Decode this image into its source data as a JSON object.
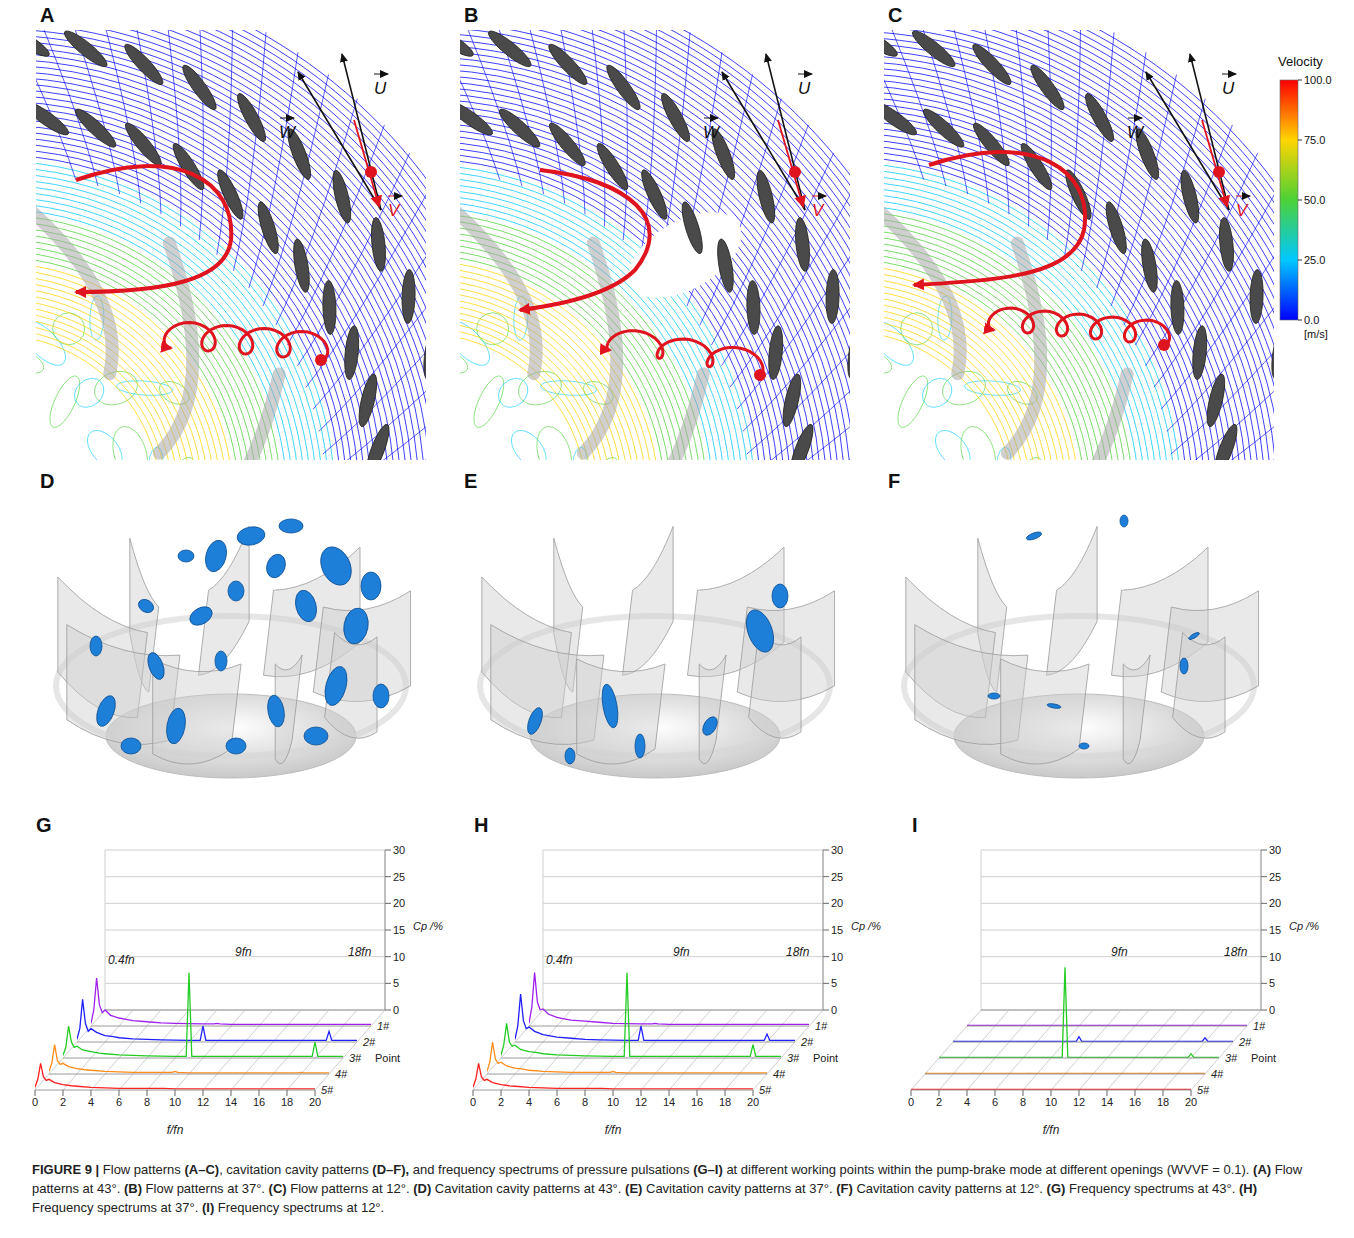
{
  "figure": {
    "flow_panels": [
      "A",
      "B",
      "C"
    ],
    "cavity_panels": [
      "D",
      "E",
      "F"
    ],
    "vector_labels": [
      "U",
      "W",
      "V"
    ],
    "velocity_scale": {
      "title": "Velocity",
      "unit": "[m/s]",
      "range": [
        0,
        100
      ],
      "ticks": [
        {
          "value": 100,
          "label": "100.0"
        },
        {
          "value": 75,
          "label": "75.0"
        },
        {
          "value": 50,
          "label": "50.0"
        },
        {
          "value": 25,
          "label": "25.0"
        },
        {
          "value": 0,
          "label": "0.0"
        }
      ],
      "colors": [
        "#0000ff",
        "#00c8ff",
        "#4cd137",
        "#ffd400",
        "#ff0000"
      ]
    },
    "caption": [
      {
        "text": "FIGURE 9 |",
        "bold": true
      },
      {
        "text": " Flow patterns ",
        "bold": false
      },
      {
        "text": "(A–C)",
        "bold": true
      },
      {
        "text": ", cavitation cavity patterns ",
        "bold": false
      },
      {
        "text": "(D–F),",
        "bold": true
      },
      {
        "text": " and frequency spectrums of pressure pulsations ",
        "bold": false
      },
      {
        "text": "(G–I)",
        "bold": true
      },
      {
        "text": " at different working points within the pump-brake mode at different openings (WVVF = 0.1). ",
        "bold": false
      },
      {
        "text": "(A)",
        "bold": true
      },
      {
        "text": " Flow patterns at 43°. ",
        "bold": false
      },
      {
        "text": "(B)",
        "bold": true
      },
      {
        "text": " Flow patterns at 37°. ",
        "bold": false
      },
      {
        "text": "(C)",
        "bold": true
      },
      {
        "text": " Flow patterns at 12°. ",
        "bold": false
      },
      {
        "text": "(D)",
        "bold": true
      },
      {
        "text": " Cavitation cavity patterns at 43°. ",
        "bold": false
      },
      {
        "text": "(E)",
        "bold": true
      },
      {
        "text": " Cavitation cavity patterns at 37°. ",
        "bold": false
      },
      {
        "text": "(F)",
        "bold": true
      },
      {
        "text": " Cavitation cavity patterns at 12°. ",
        "bold": false
      },
      {
        "text": "(G)",
        "bold": true
      },
      {
        "text": " Frequency spectrums at 43°. ",
        "bold": false
      },
      {
        "text": "(H)",
        "bold": true
      },
      {
        "text": " Frequency spectrums at 37°. ",
        "bold": false
      },
      {
        "text": "(I)",
        "bold": true
      },
      {
        "text": " Frequency spectrums at 12°.",
        "bold": false
      }
    ]
  },
  "chart_data": [
    {
      "type": "line",
      "panel": "G",
      "x": [
        0,
        0.2,
        0.4,
        0.6,
        0.8,
        1,
        1.4,
        2,
        2.6,
        3,
        4,
        5,
        6,
        8,
        8.8,
        9,
        9.2,
        10,
        12,
        14,
        16,
        17.8,
        18,
        18.2,
        20
      ],
      "xlim": [
        0,
        20
      ],
      "xticks": [
        0,
        2,
        4,
        6,
        8,
        10,
        12,
        14,
        16,
        18,
        20
      ],
      "ylim": [
        0,
        30
      ],
      "yticks": [
        0,
        5,
        10,
        15,
        20,
        25,
        30
      ],
      "x_label": "f/fn",
      "y_label": "Cp /%",
      "z_label": "Point",
      "annotations": [
        "0.4fn",
        "9fn",
        "18fn"
      ],
      "grid": true,
      "series": [
        {
          "name": "1#",
          "color": "#a020f0",
          "values": [
            0.5,
            3,
            9,
            4,
            2.5,
            3,
            2,
            1.5,
            1.2,
            1,
            0.8,
            0.6,
            0.5,
            0.4,
            0.4,
            0.5,
            0.4,
            0.3,
            0.3,
            0.3,
            0.3,
            0.3,
            0.3,
            0.3,
            0.3
          ]
        },
        {
          "name": "2#",
          "color": "#1f1fff",
          "values": [
            0.5,
            2.5,
            8,
            3.5,
            2,
            2.5,
            1.8,
            1.2,
            1,
            0.8,
            0.6,
            0.5,
            0.4,
            0.3,
            0.3,
            3,
            0.3,
            0.3,
            0.3,
            0.3,
            0.3,
            0.3,
            2,
            0.3,
            0.3
          ]
        },
        {
          "name": "3#",
          "color": "#22cc22",
          "values": [
            0.5,
            2,
            6,
            3,
            2,
            2.2,
            1.5,
            1.2,
            0.9,
            0.8,
            0.6,
            0.5,
            0.4,
            0.3,
            0.3,
            16,
            0.3,
            0.3,
            0.3,
            0.3,
            0.3,
            0.3,
            3,
            0.3,
            0.3
          ]
        },
        {
          "name": "4#",
          "color": "#ff8c1a",
          "values": [
            0.5,
            2,
            5.5,
            2.5,
            1.8,
            2,
            1.4,
            1,
            0.8,
            0.7,
            0.5,
            0.4,
            0.3,
            0.3,
            0.3,
            0.5,
            0.3,
            0.2,
            0.2,
            0.2,
            0.2,
            0.2,
            0.3,
            0.2,
            0.2
          ]
        },
        {
          "name": "5#",
          "color": "#ff2020",
          "values": [
            0.5,
            2,
            5,
            2.5,
            1.8,
            2,
            1.4,
            1,
            0.8,
            0.7,
            0.5,
            0.4,
            0.3,
            0.3,
            0.3,
            0.3,
            0.3,
            0.2,
            0.2,
            0.2,
            0.2,
            0.2,
            0.2,
            0.2,
            0.2
          ]
        }
      ]
    },
    {
      "type": "line",
      "panel": "H",
      "x": [
        0,
        0.2,
        0.4,
        0.6,
        0.8,
        1,
        1.4,
        2,
        2.6,
        3,
        4,
        5,
        6,
        8,
        8.8,
        9,
        9.2,
        10,
        12,
        14,
        16,
        17.8,
        18,
        18.2,
        20
      ],
      "xlim": [
        0,
        20
      ],
      "xticks": [
        0,
        2,
        4,
        6,
        8,
        10,
        12,
        14,
        16,
        18,
        20
      ],
      "ylim": [
        0,
        30
      ],
      "yticks": [
        0,
        5,
        10,
        15,
        20,
        25,
        30
      ],
      "x_label": "f/fn",
      "y_label": "Cp /%",
      "z_label": "Point",
      "annotations": [
        "0.4fn",
        "9fn",
        "18fn"
      ],
      "grid": true,
      "series": [
        {
          "name": "1#",
          "color": "#a020f0",
          "values": [
            0.5,
            3.5,
            10,
            4.5,
            3,
            3.2,
            2.2,
            1.6,
            1.3,
            1.1,
            0.9,
            0.7,
            0.5,
            0.4,
            0.4,
            0.5,
            0.4,
            0.3,
            0.3,
            0.3,
            0.3,
            0.3,
            0.3,
            0.3,
            0.3
          ]
        },
        {
          "name": "2#",
          "color": "#1f1fff",
          "values": [
            0.5,
            3,
            9,
            4,
            2.5,
            2.8,
            2,
            1.4,
            1.1,
            0.9,
            0.7,
            0.5,
            0.4,
            0.3,
            0.3,
            3,
            0.3,
            0.3,
            0.3,
            0.3,
            0.3,
            0.3,
            1.5,
            0.3,
            0.3
          ]
        },
        {
          "name": "3#",
          "color": "#22cc22",
          "values": [
            0.5,
            2.5,
            6.5,
            3,
            2.2,
            2.4,
            1.6,
            1.2,
            1,
            0.8,
            0.6,
            0.5,
            0.4,
            0.3,
            0.3,
            16,
            0.3,
            0.3,
            0.3,
            0.3,
            0.3,
            0.3,
            2.5,
            0.3,
            0.3
          ]
        },
        {
          "name": "4#",
          "color": "#ff8c1a",
          "values": [
            0.5,
            2.2,
            6,
            2.8,
            2,
            2.2,
            1.5,
            1.1,
            0.9,
            0.7,
            0.5,
            0.4,
            0.3,
            0.3,
            0.3,
            0.5,
            0.3,
            0.2,
            0.2,
            0.2,
            0.2,
            0.2,
            0.2,
            0.2,
            0.2
          ]
        },
        {
          "name": "5#",
          "color": "#ff2020",
          "values": [
            0.5,
            2,
            5,
            2.5,
            1.8,
            2,
            1.4,
            1,
            0.8,
            0.7,
            0.5,
            0.4,
            0.3,
            0.3,
            0.3,
            0.3,
            0.3,
            0.2,
            0.2,
            0.2,
            0.2,
            0.2,
            0.2,
            0.2,
            0.2
          ]
        }
      ]
    },
    {
      "type": "line",
      "panel": "I",
      "x": [
        0,
        0.2,
        0.4,
        0.6,
        0.8,
        1,
        1.4,
        2,
        2.6,
        3,
        4,
        5,
        6,
        8,
        8.8,
        9,
        9.2,
        10,
        12,
        14,
        16,
        17.8,
        18,
        18.2,
        20
      ],
      "xlim": [
        0,
        20
      ],
      "xticks": [
        0,
        2,
        4,
        6,
        8,
        10,
        12,
        14,
        16,
        18,
        20
      ],
      "ylim": [
        0,
        30
      ],
      "yticks": [
        0,
        5,
        10,
        15,
        20,
        25,
        30
      ],
      "x_label": "f/fn",
      "y_label": "Cp /%",
      "z_label": "Point",
      "annotations": [
        "9fn",
        "18fn"
      ],
      "grid": true,
      "series": [
        {
          "name": "1#",
          "color": "#a020f0",
          "values": [
            0.1,
            0.1,
            0.1,
            0.1,
            0.1,
            0.1,
            0.1,
            0.1,
            0.1,
            0.1,
            0.1,
            0.1,
            0.1,
            0.1,
            0.1,
            0.1,
            0.1,
            0.1,
            0.1,
            0.1,
            0.1,
            0.1,
            0.1,
            0.1,
            0.1
          ]
        },
        {
          "name": "2#",
          "color": "#1f1fff",
          "values": [
            0.1,
            0.1,
            0.1,
            0.1,
            0.1,
            0.1,
            0.1,
            0.1,
            0.1,
            0.1,
            0.1,
            0.1,
            0.1,
            0.1,
            0.1,
            1,
            0.1,
            0.1,
            0.1,
            0.1,
            0.1,
            0.1,
            0.8,
            0.1,
            0.1
          ]
        },
        {
          "name": "3#",
          "color": "#22cc22",
          "values": [
            0.1,
            0.1,
            0.1,
            0.1,
            0.1,
            0.1,
            0.1,
            0.1,
            0.1,
            0.1,
            0.1,
            0.1,
            0.1,
            0.1,
            0.1,
            17,
            0.1,
            0.1,
            0.1,
            0.1,
            0.1,
            0.1,
            0.8,
            0.1,
            0.1
          ]
        },
        {
          "name": "4#",
          "color": "#ff8c1a",
          "values": [
            0.1,
            0.1,
            0.1,
            0.1,
            0.1,
            0.1,
            0.1,
            0.1,
            0.1,
            0.1,
            0.1,
            0.1,
            0.1,
            0.1,
            0.1,
            0.1,
            0.1,
            0.1,
            0.1,
            0.1,
            0.1,
            0.1,
            0.1,
            0.1,
            0.1
          ]
        },
        {
          "name": "5#",
          "color": "#ff2020",
          "values": [
            0.1,
            0.1,
            0.1,
            0.1,
            0.1,
            0.1,
            0.1,
            0.1,
            0.1,
            0.1,
            0.1,
            0.1,
            0.1,
            0.1,
            0.1,
            0.1,
            0.1,
            0.1,
            0.1,
            0.1,
            0.1,
            0.1,
            0.1,
            0.1,
            0.1
          ]
        }
      ]
    }
  ]
}
